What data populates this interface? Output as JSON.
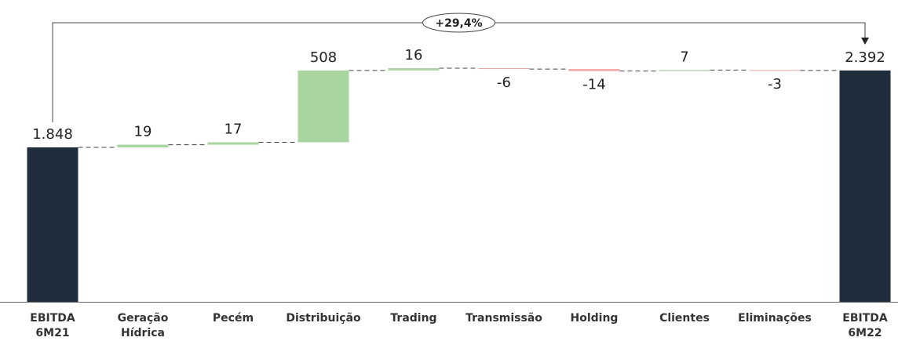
{
  "chart_data": {
    "type": "waterfall",
    "categories": [
      "EBITDA\n6M21",
      "Geração\nHídrica",
      "Pecém",
      "Distribuição",
      "Trading",
      "Transmissão",
      "Holding",
      "Clientes",
      "Eliminações",
      "EBITDA\n6M22"
    ],
    "values": [
      1848,
      19,
      17,
      508,
      16,
      -6,
      -14,
      7,
      -3,
      2392
    ],
    "value_labels": [
      "1.848",
      "19",
      "17",
      "508",
      "16",
      "-6",
      "-14",
      "7",
      "-3",
      "2.392"
    ],
    "totals": [
      0,
      9
    ],
    "colors": {
      "total": "#1f2d3d",
      "increase": "#a9d5a0",
      "decrease": "#f4a6a6"
    },
    "annotation": "+29,4%"
  }
}
